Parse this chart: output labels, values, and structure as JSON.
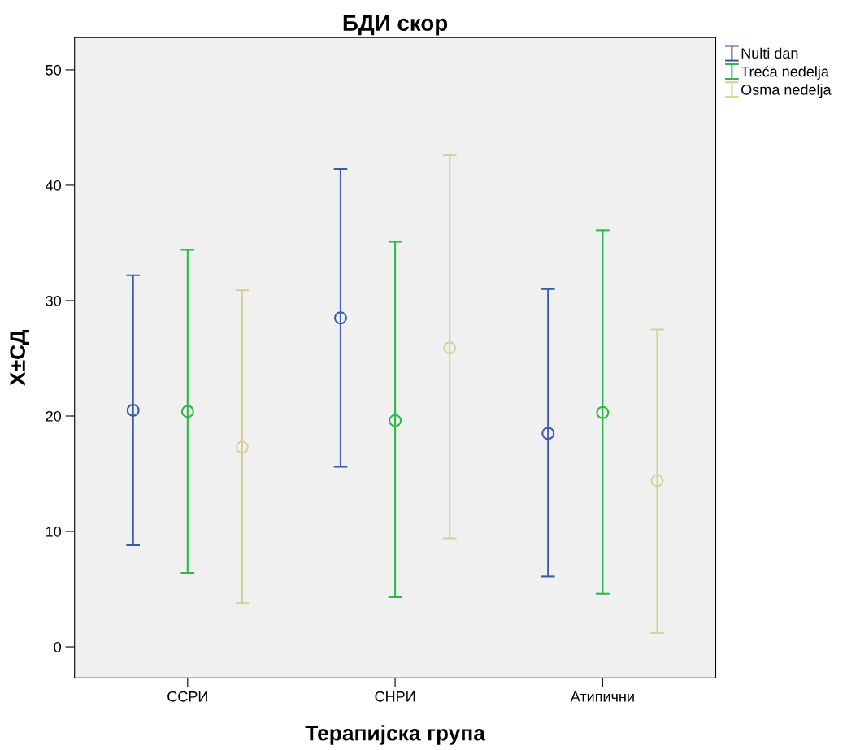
{
  "chart_data": {
    "type": "scatter",
    "title": "БДИ скор",
    "xlabel": "Терапијска група",
    "ylabel": "X±СД",
    "categories": [
      "ССРИ",
      "СНРИ",
      "Атипични"
    ],
    "series": [
      {
        "name": "Nulti dan",
        "color": "#3e58ac",
        "values": [
          20.5,
          28.5,
          18.5
        ],
        "errors": [
          [
            8.8,
            32.2
          ],
          [
            15.6,
            41.4
          ],
          [
            6.1,
            31.0
          ]
        ]
      },
      {
        "name": "Treća nedelja",
        "color": "#2eb848",
        "values": [
          20.4,
          19.6,
          20.3
        ],
        "errors": [
          [
            6.4,
            34.4
          ],
          [
            4.3,
            35.1
          ],
          [
            4.6,
            36.1
          ]
        ]
      },
      {
        "name": "Osma nedelja",
        "color": "#d4d199",
        "values": [
          17.3,
          25.9,
          14.4
        ],
        "errors": [
          [
            3.8,
            30.9
          ],
          [
            9.4,
            42.6
          ],
          [
            1.2,
            27.5
          ]
        ]
      }
    ],
    "ylim": [
      -2.7,
      52.8
    ],
    "yticks": [
      0,
      10,
      20,
      30,
      40,
      50
    ],
    "marker": "circle",
    "legend": "top right",
    "grid": false
  }
}
